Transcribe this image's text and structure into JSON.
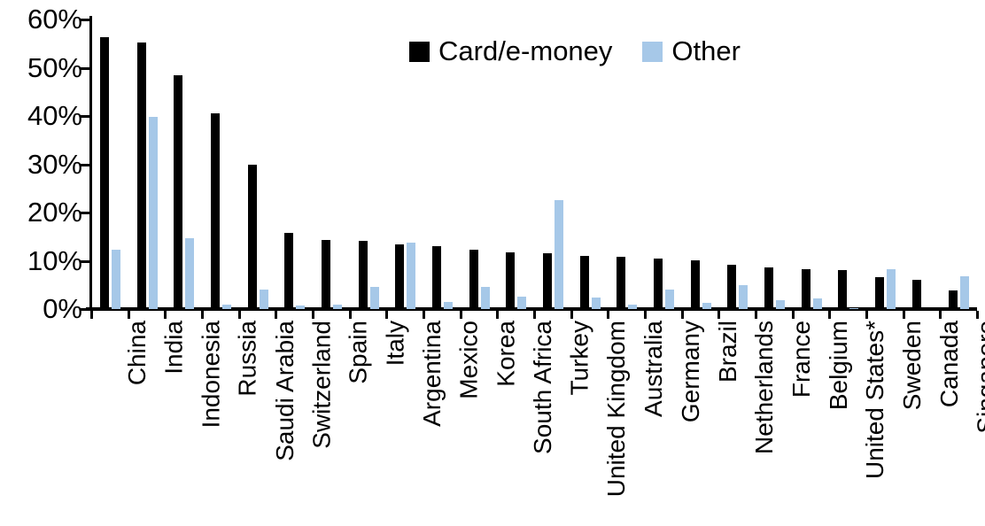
{
  "chart_data": {
    "type": "bar",
    "categories": [
      "China",
      "India",
      "Indonesia",
      "Russia",
      "Saudi Arabia",
      "Switzerland",
      "Spain",
      "Italy",
      "Argentina",
      "Mexico",
      "Korea",
      "South Africa",
      "Turkey",
      "United Kingdom",
      "Australia",
      "Germany",
      "Brazil",
      "Netherlands",
      "France",
      "Belgium",
      "United States*",
      "Sweden",
      "Canada",
      "Singapore"
    ],
    "series": [
      {
        "name": "Card/e-money",
        "color": "#000000",
        "values": [
          56.3,
          55.2,
          48.4,
          40.6,
          29.9,
          15.7,
          14.3,
          14.2,
          13.4,
          13.0,
          12.3,
          11.8,
          11.6,
          11.1,
          10.8,
          10.5,
          10.0,
          9.2,
          8.7,
          8.3,
          8.0,
          6.6,
          6.0,
          3.9
        ]
      },
      {
        "name": "Other",
        "color": "#A6C8E8",
        "values": [
          12.3,
          39.8,
          14.6,
          1.0,
          4.0,
          0.8,
          1.0,
          4.6,
          13.8,
          1.4,
          4.6,
          2.5,
          22.6,
          2.4,
          1.0,
          4.0,
          1.2,
          5.0,
          1.8,
          2.2,
          0.2,
          8.3,
          0.0,
          6.7
        ]
      }
    ],
    "title": "",
    "xlabel": "",
    "ylabel": "",
    "ylim": [
      0,
      60
    ],
    "ytick_labels": [
      "0%",
      "10%",
      "20%",
      "30%",
      "40%",
      "50%",
      "60%"
    ],
    "grid": false,
    "legend_position": "top-center",
    "xlabel_rotation": -90
  },
  "legend": {
    "items": [
      {
        "label": "Card/e-money",
        "color": "#000000"
      },
      {
        "label": "Other",
        "color": "#A6C8E8"
      }
    ]
  }
}
